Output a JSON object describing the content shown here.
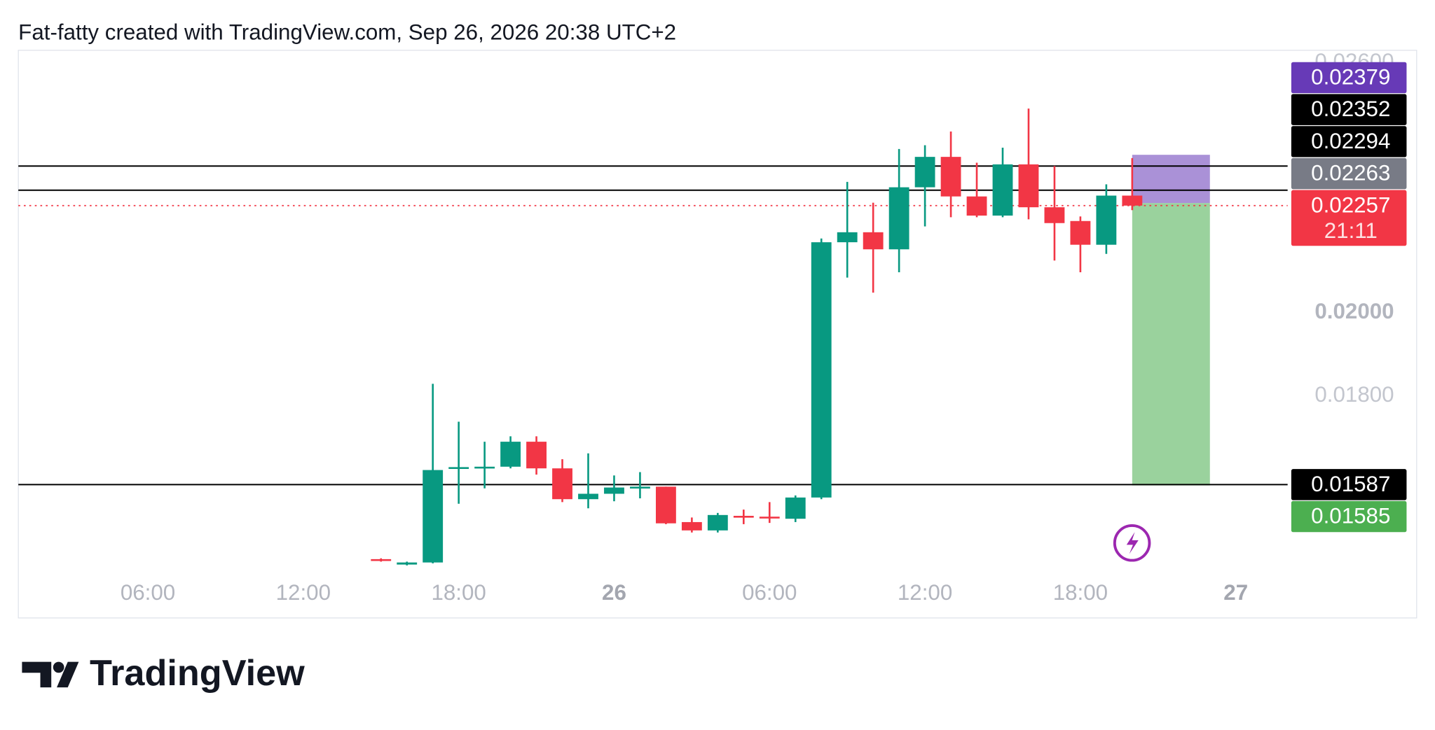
{
  "header": {
    "title": "Fat-fatty created with TradingView.com, Sep 26, 2026 20:38 UTC+2"
  },
  "chart_data": {
    "type": "candlestick",
    "x": [
      15,
      16,
      17,
      18,
      19,
      20,
      21,
      22,
      23,
      24,
      25,
      26,
      27,
      28,
      29,
      30,
      31,
      32,
      33,
      34,
      35,
      36,
      37,
      38,
      39,
      40,
      41,
      42,
      43,
      44
    ],
    "open": [
      0.01408,
      0.01395,
      0.014,
      0.01625,
      0.01629,
      0.0163,
      0.0169,
      0.01626,
      0.01552,
      0.01565,
      0.0158,
      0.01582,
      0.01497,
      0.01477,
      0.01512,
      0.0151,
      0.01505,
      0.01556,
      0.02169,
      0.02193,
      0.02152,
      0.02301,
      0.02374,
      0.02279,
      0.02233,
      0.02356,
      0.02253,
      0.0222,
      0.02163,
      0.02281
    ],
    "high": [
      0.0141,
      0.01402,
      0.01829,
      0.01738,
      0.0169,
      0.01703,
      0.01703,
      0.01648,
      0.01662,
      0.01609,
      0.01617,
      0.01582,
      0.01508,
      0.01519,
      0.01527,
      0.01545,
      0.01561,
      0.02178,
      0.02314,
      0.02264,
      0.02393,
      0.02402,
      0.02435,
      0.0236,
      0.02396,
      0.0249,
      0.02352,
      0.02231,
      0.02308,
      0.02371
    ],
    "low": [
      0.01402,
      0.01393,
      0.01398,
      0.01541,
      0.01578,
      0.01626,
      0.01611,
      0.01545,
      0.0153,
      0.01547,
      0.01554,
      0.01492,
      0.01472,
      0.01472,
      0.01492,
      0.01495,
      0.01497,
      0.01552,
      0.02084,
      0.02048,
      0.02097,
      0.02207,
      0.02229,
      0.02229,
      0.02229,
      0.02224,
      0.02125,
      0.02097,
      0.02141,
      0.02246
    ],
    "close": [
      0.01405,
      0.014,
      0.01622,
      0.01629,
      0.0163,
      0.0169,
      0.01626,
      0.01552,
      0.01565,
      0.0158,
      0.01582,
      0.01494,
      0.01477,
      0.01514,
      0.01508,
      0.01508,
      0.01556,
      0.02169,
      0.02193,
      0.02152,
      0.02301,
      0.02374,
      0.02279,
      0.02233,
      0.02356,
      0.02253,
      0.02215,
      0.02163,
      0.02281,
      0.02257
    ],
    "up_color": "#089981",
    "down_color": "#f23645",
    "xlim": [
      1,
      50
    ],
    "xticks": [
      {
        "value": 6,
        "label": "06:00"
      },
      {
        "value": 12,
        "label": "12:00"
      },
      {
        "value": 18,
        "label": "18:00"
      },
      {
        "value": 24,
        "label": "26"
      },
      {
        "value": 30,
        "label": "06:00"
      },
      {
        "value": 36,
        "label": "12:00"
      },
      {
        "value": 42,
        "label": "18:00"
      },
      {
        "value": 48,
        "label": "27"
      }
    ],
    "ylim": [
      0.0137,
      0.0263
    ],
    "yticks": [
      {
        "value": 0.026,
        "label": "0.02600"
      },
      {
        "value": 0.02,
        "label": "0.02000"
      },
      {
        "value": 0.018,
        "label": "0.01800"
      }
    ],
    "lines": [
      {
        "value": 0.02352,
        "label": "0.02352"
      },
      {
        "value": 0.02294,
        "label": "0.02294"
      },
      {
        "value": 0.01587,
        "label": "0.01587"
      }
    ],
    "last_price": {
      "value": 0.02257,
      "label": "0.02257",
      "countdown": "21:11"
    },
    "position": {
      "x": [
        44,
        47
      ],
      "stop": {
        "value": 0.02379,
        "label": "0.02379"
      },
      "entry": {
        "value": 0.02263,
        "label": "0.02263"
      },
      "target": {
        "value": 0.01585,
        "label": "0.01585"
      }
    }
  },
  "footer": {
    "brand": "TradingView"
  }
}
